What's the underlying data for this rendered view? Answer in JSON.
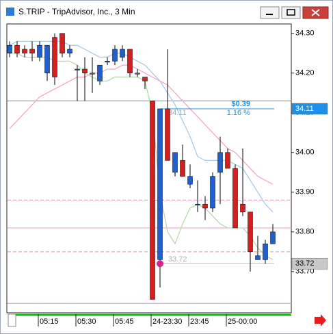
{
  "window_title": "S.TRIP - TripAdvisor, Inc., 3 Min",
  "chart_data": {
    "type": "candlestick",
    "categories": [
      null,
      null,
      null,
      null,
      "05:15",
      null,
      null,
      null,
      null,
      "05:30",
      null,
      null,
      null,
      null,
      "05:45",
      null,
      null,
      null,
      null,
      "24-23:30",
      null,
      null,
      null,
      null,
      "23:45",
      null,
      null,
      null,
      null,
      "25-00:00",
      null,
      null,
      null,
      null,
      null,
      null
    ],
    "open": [
      34.25,
      34.27,
      34.26,
      34.26,
      34.24,
      34.2,
      34.29,
      34.3,
      34.25,
      34.21,
      34.21,
      34.2,
      34.18,
      34.23,
      34.23,
      34.24,
      34.26,
      34.2,
      34.19,
      34.13,
      33.73,
      34.11,
      33.95,
      33.98,
      33.92,
      33.87,
      33.87,
      33.86,
      33.95,
      34.0,
      33.96,
      33.87,
      33.85,
      33.73,
      33.73,
      33.77
    ],
    "high": [
      34.28,
      34.28,
      34.27,
      34.28,
      34.28,
      34.27,
      34.3,
      34.3,
      34.27,
      34.22,
      34.24,
      34.24,
      34.22,
      34.24,
      34.27,
      34.27,
      34.26,
      34.21,
      34.19,
      34.13,
      34.11,
      34.26,
      34.0,
      34.02,
      33.97,
      33.93,
      33.89,
      33.95,
      34.04,
      34.01,
      33.97,
      34.01,
      33.85,
      33.79,
      33.78,
      33.82
    ],
    "low": [
      34.24,
      34.24,
      34.24,
      34.23,
      34.23,
      34.18,
      34.17,
      34.24,
      34.24,
      34.13,
      34.13,
      34.15,
      34.17,
      34.22,
      34.22,
      34.23,
      34.19,
      34.19,
      34.16,
      33.63,
      33.66,
      33.98,
      33.94,
      33.94,
      33.91,
      33.85,
      33.83,
      33.85,
      33.87,
      33.96,
      33.81,
      33.84,
      33.7,
      33.73,
      33.72,
      33.77
    ],
    "close": [
      34.27,
      34.25,
      34.25,
      34.25,
      34.27,
      34.27,
      34.19,
      34.25,
      34.26,
      34.21,
      34.2,
      34.2,
      34.22,
      34.23,
      34.26,
      34.26,
      34.2,
      34.2,
      34.18,
      33.63,
      34.11,
      33.98,
      34.0,
      33.94,
      33.94,
      33.87,
      33.86,
      33.94,
      34.0,
      33.96,
      33.81,
      33.85,
      33.75,
      33.74,
      33.77,
      33.8
    ],
    "up_color": "#1f5fd0",
    "down_color": "#d41f1f",
    "series": [
      {
        "color": "#a9cbe8",
        "values": [
          34.27,
          34.28,
          34.28,
          34.28,
          34.28,
          34.28,
          34.28,
          34.28,
          34.27,
          34.27,
          34.26,
          34.25,
          34.24,
          34.24,
          34.25,
          34.25,
          34.24,
          34.23,
          34.22,
          34.2,
          34.18,
          34.15,
          34.12,
          34.08,
          34.04,
          33.99,
          33.98,
          33.98,
          33.98,
          33.98,
          33.97,
          33.96,
          33.93,
          33.9,
          33.87,
          33.85
        ]
      },
      {
        "color": "#f4a6c8",
        "values": [
          34.06,
          34.08,
          34.1,
          34.12,
          34.14,
          34.15,
          34.16,
          34.17,
          34.18,
          34.19,
          34.19,
          34.2,
          34.2,
          34.21,
          34.21,
          34.22,
          34.22,
          34.21,
          34.2,
          34.19,
          34.18,
          34.17,
          34.15,
          34.13,
          34.11,
          34.09,
          34.07,
          34.05,
          34.03,
          34.01,
          34.0,
          33.98,
          33.96,
          33.94,
          33.93,
          33.92
        ]
      },
      {
        "color": "#b9d8b0",
        "values": [
          34.25,
          34.25,
          34.24,
          34.24,
          34.24,
          34.24,
          34.23,
          34.23,
          34.23,
          34.22,
          34.2,
          34.19,
          34.18,
          34.18,
          34.19,
          34.19,
          34.19,
          34.19,
          34.18,
          34.1,
          33.9,
          33.8,
          33.77,
          33.82,
          33.86,
          33.87,
          33.86,
          33.84,
          33.82,
          33.81,
          33.81,
          33.81,
          33.79,
          33.76,
          33.74,
          33.73
        ]
      }
    ],
    "levels": [
      {
        "value": 34.13,
        "color": "#7a8a9a",
        "dashed": false
      },
      {
        "value": 33.88,
        "color": "#e58fc4",
        "dashed": true
      },
      {
        "value": 33.81,
        "color": "#f19ac6",
        "dashed": false
      },
      {
        "value": 33.75,
        "color": "#e58fc4",
        "dashed": true
      },
      {
        "value": 33.62,
        "color": "#d88ad8",
        "dashed": false
      }
    ],
    "ylim": [
      33.598,
      34.322
    ],
    "yticks": [
      {
        "value": 34.3,
        "label": "34.30"
      },
      {
        "value": 34.2,
        "label": "34.20"
      },
      {
        "value": 34.1,
        "label": "34.10"
      },
      {
        "value": 34,
        "label": "34.00"
      },
      {
        "value": 33.9,
        "label": "33.90"
      },
      {
        "value": 33.8,
        "label": "33.80"
      },
      {
        "value": 33.7,
        "label": "33.70"
      }
    ],
    "price_labels": [
      {
        "value": 34.11,
        "color": "#1e90e8"
      },
      {
        "value": 33.72,
        "color": "#c8c8c8"
      }
    ],
    "measure": {
      "from": 33.72,
      "to": 34.11,
      "change": "$0.39",
      "percent": "1.16 %",
      "from_label": "33.72",
      "to_label": "34.11"
    }
  }
}
